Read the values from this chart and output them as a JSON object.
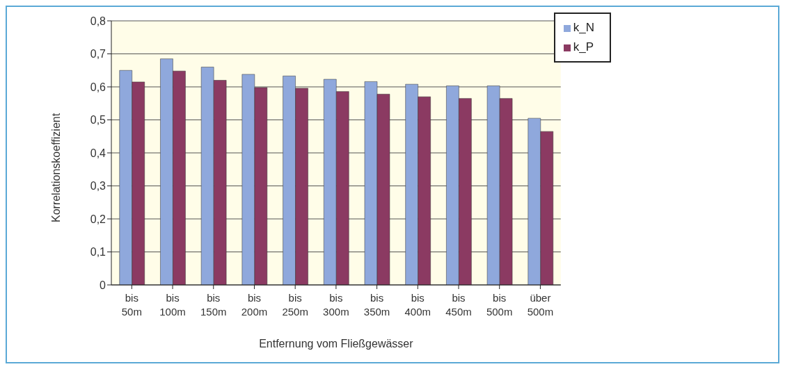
{
  "chart_data": {
    "type": "bar",
    "xlabel": "Entfernung vom Fließgewässer",
    "ylabel": "Korrelationskoeffizient",
    "categories": [
      "bis 50m",
      "bis 100m",
      "bis 150m",
      "bis 200m",
      "bis 250m",
      "bis 300m",
      "bis 350m",
      "bis 400m",
      "bis 450m",
      "bis 500m",
      "über 500m"
    ],
    "series": [
      {
        "name": "k_N",
        "color": "#8fa8dc",
        "values": [
          0.65,
          0.685,
          0.66,
          0.638,
          0.633,
          0.623,
          0.616,
          0.608,
          0.603,
          0.603,
          0.505
        ]
      },
      {
        "name": "k_P",
        "color": "#8b3a62",
        "values": [
          0.615,
          0.648,
          0.62,
          0.598,
          0.596,
          0.586,
          0.578,
          0.57,
          0.565,
          0.565,
          0.465
        ]
      }
    ],
    "ylim": [
      0,
      0.8
    ],
    "yticks": [
      {
        "value": 0,
        "label": "0"
      },
      {
        "value": 0.1,
        "label": "0,1"
      },
      {
        "value": 0.2,
        "label": "0,2"
      },
      {
        "value": 0.3,
        "label": "0,3"
      },
      {
        "value": 0.4,
        "label": "0,4"
      },
      {
        "value": 0.5,
        "label": "0,5"
      },
      {
        "value": 0.6,
        "label": "0,6"
      },
      {
        "value": 0.7,
        "label": "0,7"
      },
      {
        "value": 0.8,
        "label": "0,8"
      }
    ],
    "grid": "y",
    "legend": "top right"
  }
}
